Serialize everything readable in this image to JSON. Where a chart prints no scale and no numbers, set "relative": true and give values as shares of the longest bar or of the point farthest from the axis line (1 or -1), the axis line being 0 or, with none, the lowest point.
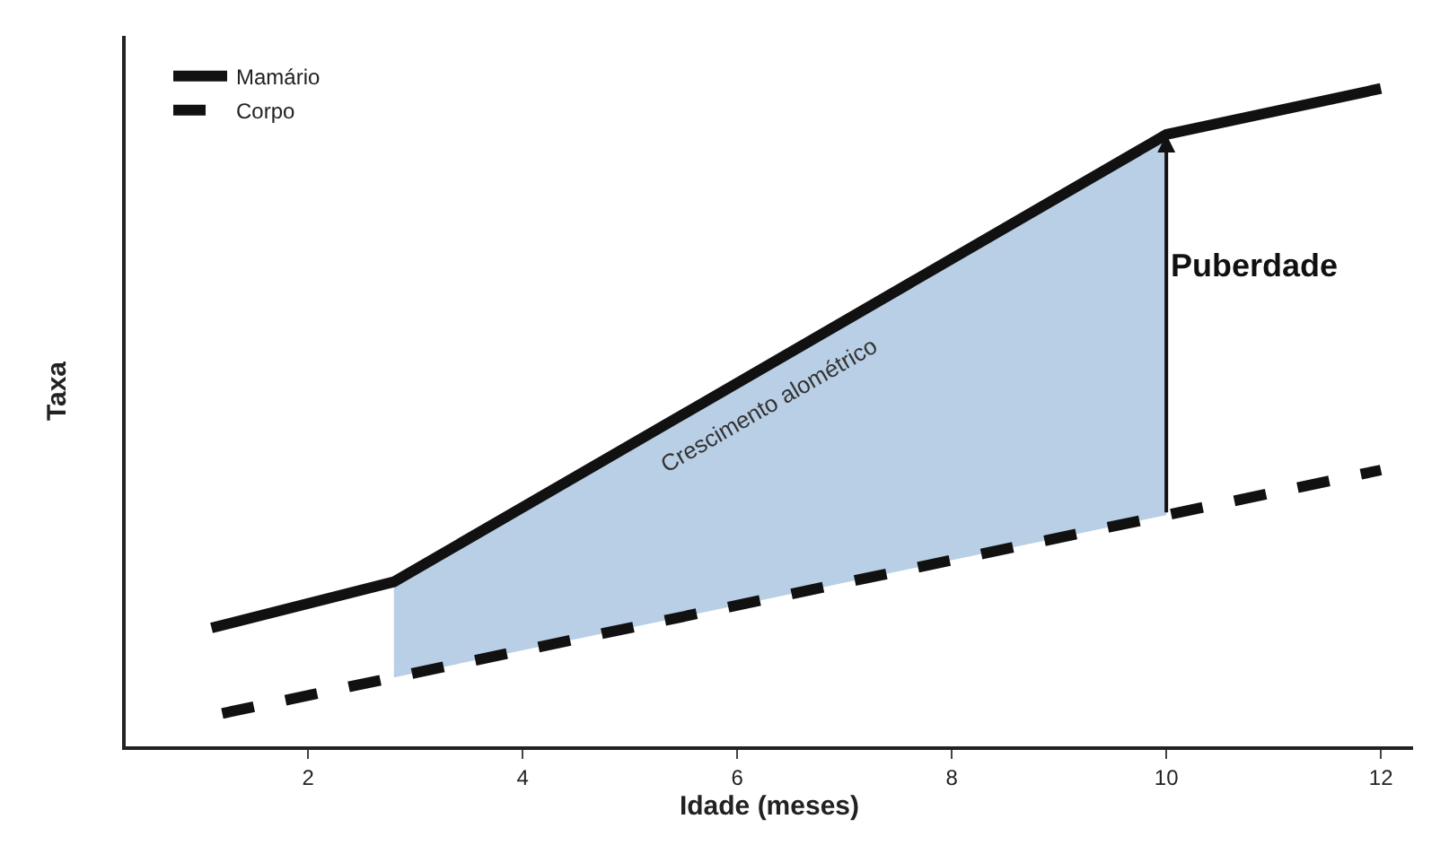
{
  "chart_data": {
    "type": "line",
    "relative": true,
    "xlabel": "Idade (meses)",
    "ylabel": "Taxa",
    "xlim": [
      0.3,
      12.3
    ],
    "xticks": [
      2,
      4,
      6,
      8,
      10,
      12
    ],
    "grid": false,
    "legend": "top left",
    "marker": "none",
    "series": [
      {
        "name": "Mamário",
        "color": "#111111",
        "line_style": "solid",
        "x": [
          1.1,
          2.8,
          10,
          12
        ],
        "values": [
          0.18,
          0.25,
          0.93,
          1
        ]
      },
      {
        "name": "Corpo",
        "color": "#111111",
        "line_style": "dashed",
        "x": [
          1.2,
          12
        ],
        "values": [
          0.05,
          0.42
        ]
      },
      {
        "type": "area",
        "color": "#b9cfe6",
        "x": [
          2.8,
          10
        ],
        "values": [
          0.25,
          0.93
        ]
      }
    ],
    "annotations": [
      "Crescimento alométrico",
      {
        "text": "Puberdade",
        "x": 10,
        "y": 0.73
      }
    ]
  }
}
